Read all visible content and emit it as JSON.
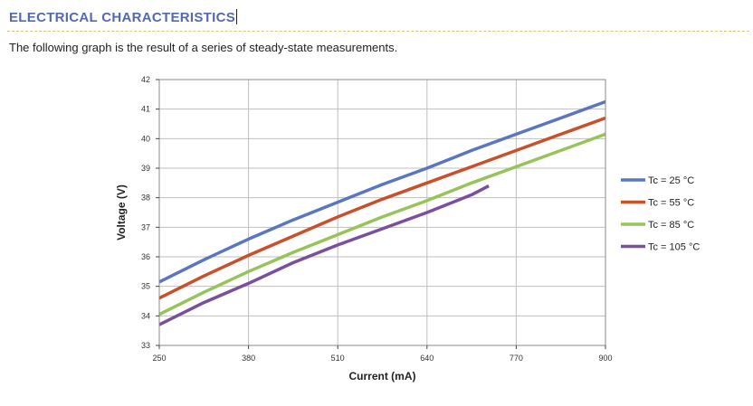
{
  "page": {
    "heading": "ELECTRICAL CHARACTERISTICS",
    "intro": "The following graph is the result of a series of steady-state measurements."
  },
  "chart_data": {
    "type": "line",
    "title": "",
    "xlabel": "Current (mA)",
    "ylabel": "Voltage (V)",
    "xlim": [
      250,
      900
    ],
    "ylim": [
      33,
      42
    ],
    "xticks": [
      250,
      380,
      510,
      640,
      770,
      900
    ],
    "yticks": [
      33,
      34,
      35,
      36,
      37,
      38,
      39,
      40,
      41,
      42
    ],
    "grid": true,
    "legend_position": "right",
    "series": [
      {
        "name": "Tc = 25 °C",
        "color": "#5b76c0",
        "x": [
          250,
          315,
          380,
          445,
          510,
          575,
          640,
          705,
          770,
          835,
          900
        ],
        "y": [
          35.15,
          35.9,
          36.6,
          37.25,
          37.85,
          38.45,
          39.0,
          39.6,
          40.15,
          40.7,
          41.25
        ]
      },
      {
        "name": "Tc = 55 °C",
        "color": "#c9502c",
        "x": [
          250,
          315,
          380,
          445,
          510,
          575,
          640,
          705,
          770,
          835,
          900
        ],
        "y": [
          34.6,
          35.35,
          36.05,
          36.7,
          37.35,
          37.95,
          38.5,
          39.05,
          39.6,
          40.15,
          40.7
        ]
      },
      {
        "name": "Tc = 85 °C",
        "color": "#96c45a",
        "x": [
          250,
          315,
          380,
          445,
          510,
          575,
          640,
          705,
          770,
          835,
          900
        ],
        "y": [
          34.05,
          34.8,
          35.5,
          36.15,
          36.75,
          37.35,
          37.9,
          38.5,
          39.05,
          39.6,
          40.15
        ]
      },
      {
        "name": "Tc = 105 °C",
        "color": "#7a4f9e",
        "x": [
          250,
          315,
          380,
          445,
          510,
          575,
          640,
          705,
          730
        ],
        "y": [
          33.7,
          34.45,
          35.1,
          35.8,
          36.4,
          36.95,
          37.5,
          38.1,
          38.4
        ]
      }
    ]
  }
}
